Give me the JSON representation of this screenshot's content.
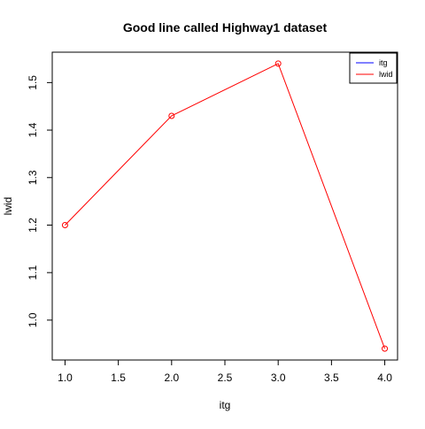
{
  "chart_data": {
    "type": "line",
    "title": "Good line called Highway1 dataset",
    "xlabel": "itg",
    "ylabel": "lwid",
    "x": [
      1.0,
      2.0,
      3.0,
      4.0
    ],
    "series": [
      {
        "name": "lwid",
        "values": [
          1.2,
          1.43,
          1.54,
          0.94
        ],
        "color": "#ff0000",
        "markers": "open-circle"
      }
    ],
    "xlim": [
      0.88,
      4.12
    ],
    "ylim": [
      0.916,
      1.564
    ],
    "xticks": [
      1.0,
      1.5,
      2.0,
      2.5,
      3.0,
      3.5,
      4.0
    ],
    "xtick_labels": [
      "1.0",
      "1.5",
      "2.0",
      "2.5",
      "3.0",
      "3.5",
      "4.0"
    ],
    "yticks": [
      1.0,
      1.1,
      1.2,
      1.3,
      1.4,
      1.5
    ],
    "ytick_labels": [
      "1.0",
      "1.1",
      "1.2",
      "1.3",
      "1.4",
      "1.5"
    ],
    "grid": false,
    "legend": {
      "position": "top-right",
      "entries": [
        {
          "label": "itg",
          "color": "#0000ff"
        },
        {
          "label": "lwid",
          "color": "#ff0000"
        }
      ]
    }
  }
}
